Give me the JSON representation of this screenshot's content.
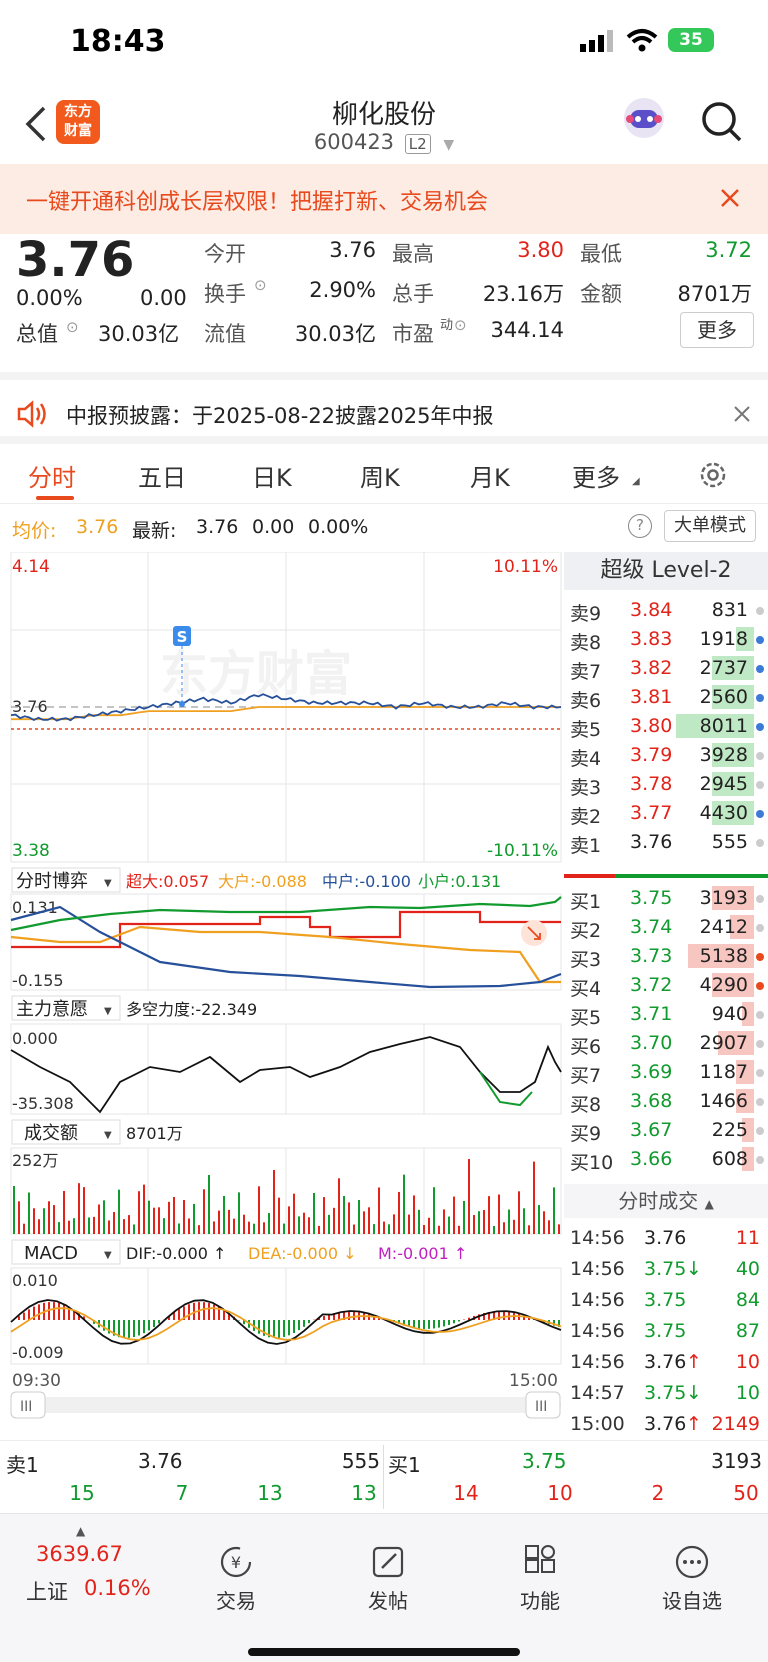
{
  "status": {
    "time": "18:43",
    "battery": "35"
  },
  "nav": {
    "logo_line1": "东方",
    "logo_line2": "财富",
    "title": "柳化股份",
    "code": "600423",
    "badge": "L2"
  },
  "banner": {
    "text": "一键开通科创成长层权限！把握打新、交易机会"
  },
  "quote": {
    "price": "3.76",
    "change_pct": "0.00%",
    "change": "0.00",
    "fields": [
      {
        "label": "今开",
        "value": "3.76"
      },
      {
        "label": "最高",
        "value": "3.80"
      },
      {
        "label": "最低",
        "value": "3.72"
      },
      {
        "label": "换手",
        "value": "2.90%"
      },
      {
        "label": "总手",
        "value": "23.16万"
      },
      {
        "label": "金额",
        "value": "8701万"
      },
      {
        "label": "总值",
        "value": "30.03亿"
      },
      {
        "label": "流值",
        "value": "30.03亿"
      },
      {
        "label": "市盈",
        "value": "344.14"
      }
    ],
    "pe_sup": "动",
    "more_button": "更多"
  },
  "notice": {
    "text": "中报预披露：于2025-08-22披露2025年中报"
  },
  "tabs": [
    "分时",
    "五日",
    "日K",
    "周K",
    "月K",
    "更多"
  ],
  "infobar": {
    "avg_label": "均价:",
    "avg": "3.76",
    "latest_label": "最新:",
    "latest": "3.76",
    "chg": "0.00",
    "pct": "0.00%",
    "mode_button": "大单模式"
  },
  "chart": {
    "y_top": "4.14",
    "y_bottom": "3.38",
    "pct_top": "10.11%",
    "pct_bottom": "-10.11%",
    "y_mid": "3.76",
    "watermark": "东方财富",
    "marker": "S",
    "game": {
      "title": "分时博弈",
      "sup": "超大:0.057",
      "big": "大户:-0.088",
      "mid": "中户:-0.100",
      "small": "小户:0.131",
      "top": "0.131",
      "bottom": "-0.155"
    },
    "will": {
      "title": "主力意愿",
      "force": "多空力度:-22.349",
      "top": "0.000",
      "bottom": "-35.308"
    },
    "vol": {
      "title": "成交额",
      "value": "8701万",
      "top": "252万"
    },
    "macd": {
      "title": "MACD",
      "dif": "DIF:-0.000 ↑",
      "dea": "DEA:-0.000 ↓",
      "m": "M:-0.001 ↑",
      "top": "0.010",
      "bottom": "-0.009"
    },
    "time_start": "09:30",
    "time_end": "15:00"
  },
  "chart_data": {
    "type": "line",
    "x_range": [
      "09:30",
      "15:00"
    ],
    "ylim": [
      3.38,
      4.14
    ],
    "pct_range": [
      "-10.11%",
      "10.11%"
    ],
    "series": [
      {
        "name": "最新",
        "values": [
          3.74,
          3.73,
          3.73,
          3.74,
          3.75,
          3.76,
          3.77,
          3.78,
          3.77,
          3.79,
          3.78,
          3.77,
          3.77,
          3.77,
          3.76,
          3.77,
          3.76,
          3.76,
          3.77,
          3.76,
          3.76
        ]
      },
      {
        "name": "均价",
        "values": [
          3.73,
          3.73,
          3.73,
          3.74,
          3.74,
          3.75,
          3.75,
          3.75,
          3.75,
          3.76,
          3.76,
          3.76,
          3.76,
          3.76,
          3.76,
          3.76,
          3.76,
          3.76,
          3.76,
          3.76,
          3.76
        ]
      }
    ]
  },
  "level2": {
    "title": "超级 Level-2",
    "asks": [
      [
        "卖9",
        "3.84",
        "831"
      ],
      [
        "卖8",
        "3.83",
        "1918"
      ],
      [
        "卖7",
        "3.82",
        "2737"
      ],
      [
        "卖6",
        "3.81",
        "2560"
      ],
      [
        "卖5",
        "3.80",
        "8011"
      ],
      [
        "卖4",
        "3.79",
        "3928"
      ],
      [
        "卖3",
        "3.78",
        "2945"
      ],
      [
        "卖2",
        "3.77",
        "4430"
      ],
      [
        "卖1",
        "3.76",
        "555"
      ]
    ],
    "bids": [
      [
        "买1",
        "3.75",
        "3193"
      ],
      [
        "买2",
        "3.74",
        "2412"
      ],
      [
        "买3",
        "3.73",
        "5138"
      ],
      [
        "买4",
        "3.72",
        "4290"
      ],
      [
        "买5",
        "3.71",
        "940"
      ],
      [
        "买6",
        "3.70",
        "2907"
      ],
      [
        "买7",
        "3.69",
        "1187"
      ],
      [
        "买8",
        "3.68",
        "1466"
      ],
      [
        "买9",
        "3.67",
        "225"
      ],
      [
        "买10",
        "3.66",
        "608"
      ]
    ]
  },
  "trades": {
    "title": "分时成交",
    "rows": [
      [
        "14:56",
        "3.76",
        "",
        "11"
      ],
      [
        "14:56",
        "3.75",
        "↓",
        "40"
      ],
      [
        "14:56",
        "3.75",
        "",
        "84"
      ],
      [
        "14:56",
        "3.75",
        "",
        "87"
      ],
      [
        "14:56",
        "3.76",
        "↑",
        "10"
      ],
      [
        "14:57",
        "3.75",
        "↓",
        "10"
      ],
      [
        "15:00",
        "3.76",
        "↑",
        "2149"
      ]
    ]
  },
  "summary": {
    "sell_label": "卖1",
    "sell_price": "3.76",
    "sell_vol": "555",
    "buy_label": "买1",
    "buy_price": "3.75",
    "buy_vol": "3193",
    "nums": [
      "15",
      "7",
      "13",
      "13",
      "14",
      "10",
      "2",
      "50"
    ]
  },
  "bottom": {
    "index_value": "3639.67",
    "index_name": "上证",
    "index_pct": "0.16%",
    "items": [
      "交易",
      "发帖",
      "功能",
      "设自选"
    ]
  }
}
